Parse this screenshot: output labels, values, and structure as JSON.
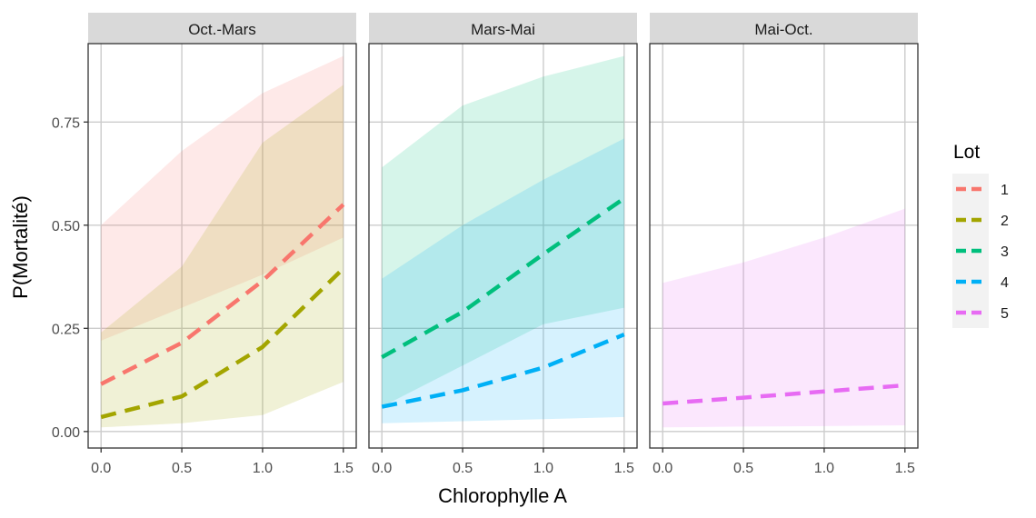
{
  "chart_data": {
    "type": "line",
    "xlabel": "Chlorophylle A",
    "ylabel": "P(Mortalité)",
    "xlim": [
      -0.08,
      1.58
    ],
    "ylim": [
      -0.04,
      0.94
    ],
    "x_ticks": [
      0.0,
      0.5,
      1.0,
      1.5
    ],
    "x_tick_labels": [
      "0.0",
      "0.5",
      "1.0",
      "1.5"
    ],
    "y_ticks": [
      0.0,
      0.25,
      0.5,
      0.75
    ],
    "y_tick_labels": [
      "0.00",
      "0.25",
      "0.50",
      "0.75"
    ],
    "grid": true,
    "legend": {
      "title": "Lot",
      "placement": "right",
      "entries": [
        {
          "label": "1",
          "color": "#F8766D"
        },
        {
          "label": "2",
          "color": "#A3A500"
        },
        {
          "label": "3",
          "color": "#00BF7D"
        },
        {
          "label": "4",
          "color": "#00B0F6"
        },
        {
          "label": "5",
          "color": "#E76BF3"
        }
      ]
    },
    "panels": [
      {
        "strip": "Oct.-Mars",
        "series": [
          {
            "name": "1",
            "color": "#F8766D",
            "x": [
              0.0,
              0.5,
              1.0,
              1.5
            ],
            "y": [
              0.115,
              0.215,
              0.365,
              0.55
            ],
            "lower": [
              0.22,
              0.3,
              0.38,
              0.47
            ],
            "upper": [
              0.5,
              0.68,
              0.82,
              0.91
            ]
          },
          {
            "name": "2",
            "color": "#A3A500",
            "x": [
              0.0,
              0.5,
              1.0,
              1.5
            ],
            "y": [
              0.035,
              0.085,
              0.205,
              0.395
            ],
            "lower": [
              0.01,
              0.02,
              0.04,
              0.12
            ],
            "upper": [
              0.24,
              0.4,
              0.7,
              0.84
            ]
          }
        ]
      },
      {
        "strip": "Mars-Mai",
        "series": [
          {
            "name": "3",
            "color": "#00BF7D",
            "x": [
              0.0,
              0.5,
              1.0,
              1.5
            ],
            "y": [
              0.18,
              0.29,
              0.43,
              0.565
            ],
            "lower": [
              0.06,
              0.16,
              0.26,
              0.3
            ],
            "upper": [
              0.64,
              0.79,
              0.86,
              0.91
            ]
          },
          {
            "name": "4",
            "color": "#00B0F6",
            "x": [
              0.0,
              0.5,
              1.0,
              1.5
            ],
            "y": [
              0.06,
              0.1,
              0.155,
              0.235
            ],
            "lower": [
              0.02,
              0.025,
              0.03,
              0.035
            ],
            "upper": [
              0.37,
              0.5,
              0.61,
              0.71
            ]
          }
        ]
      },
      {
        "strip": "Mai-Oct.",
        "series": [
          {
            "name": "5",
            "color": "#E76BF3",
            "x": [
              0.0,
              0.5,
              1.0,
              1.5
            ],
            "y": [
              0.068,
              0.082,
              0.097,
              0.112
            ],
            "lower": [
              0.01,
              0.012,
              0.013,
              0.015
            ],
            "upper": [
              0.36,
              0.41,
              0.47,
              0.54
            ]
          }
        ]
      }
    ]
  }
}
